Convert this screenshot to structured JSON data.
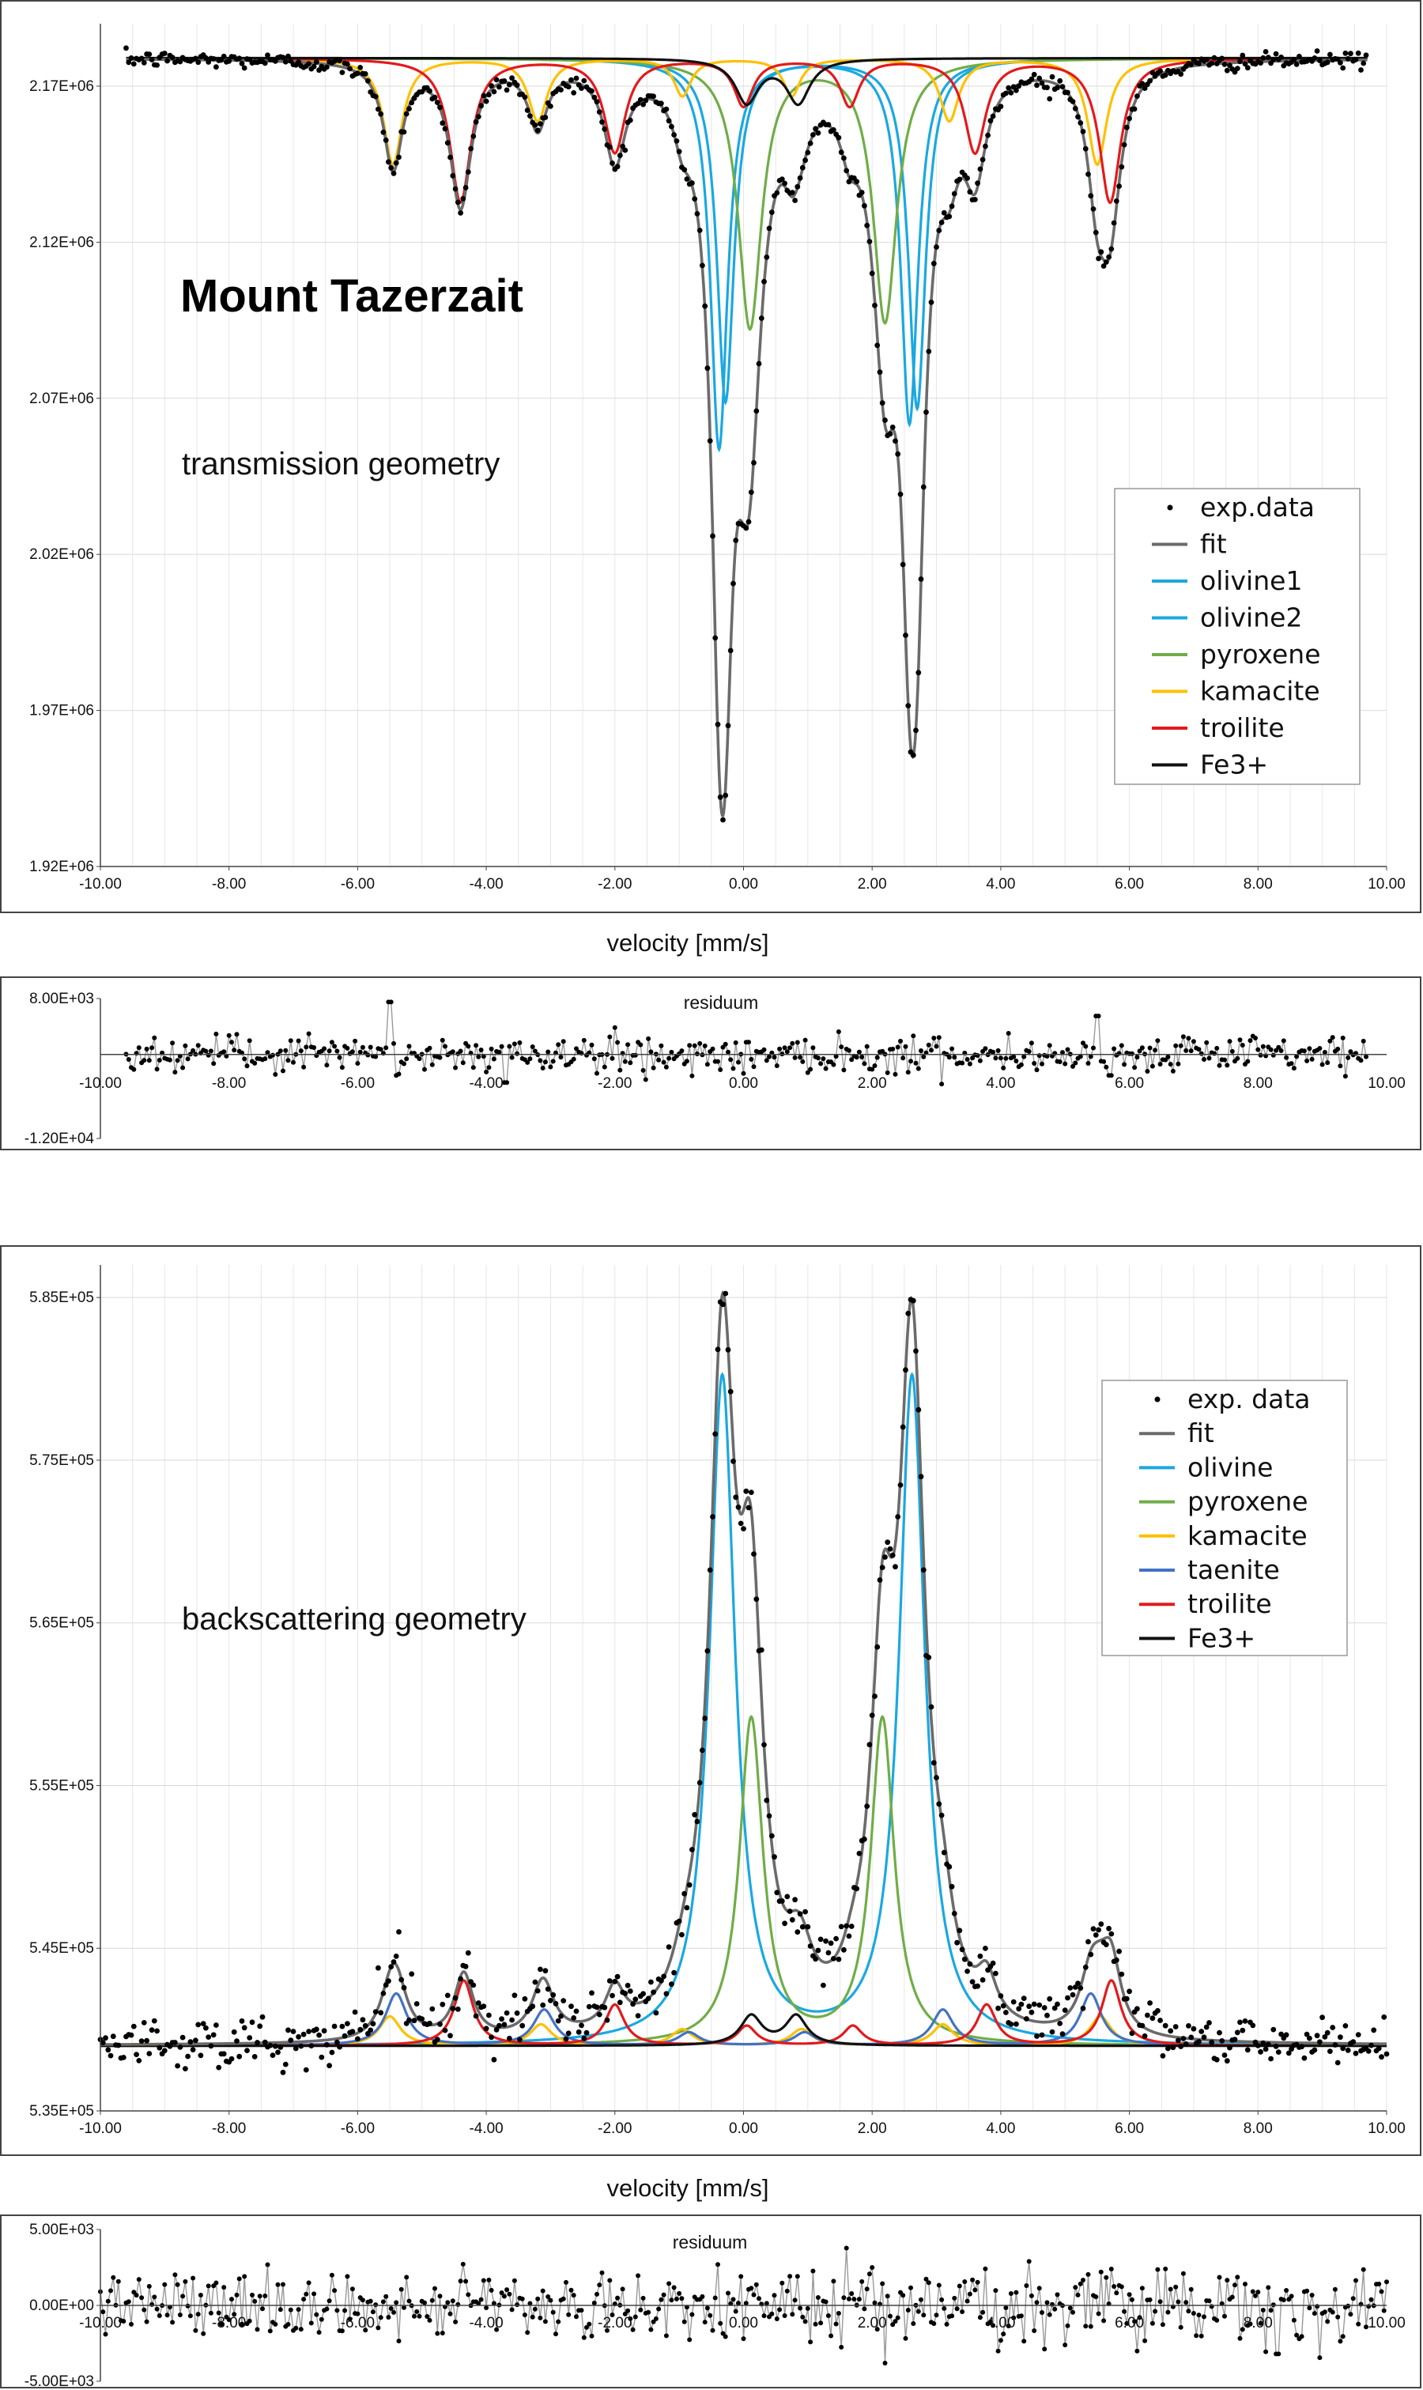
{
  "chart_data": [
    {
      "type": "line",
      "annotation_title": "Mount Tazerzait",
      "annotation_subtitle": "transmission geometry",
      "xlabel": "velocity [mm/s]",
      "ylabel": "",
      "xlim": [
        -10,
        10
      ],
      "ylim": [
        1920000,
        2190000
      ],
      "x_ticks": [
        "-10.00",
        "-8.00",
        "-6.00",
        "-4.00",
        "-2.00",
        "0.00",
        "2.00",
        "4.00",
        "6.00",
        "8.00",
        "10.00"
      ],
      "y_ticks": [
        "1.92E+06",
        "1.97E+06",
        "2.02E+06",
        "2.07E+06",
        "2.12E+06",
        "2.17E+06"
      ],
      "y_tick_values": [
        1920000,
        1970000,
        2020000,
        2070000,
        2120000,
        2170000
      ],
      "grid": true,
      "legend_position": "right",
      "baseline": 2179000,
      "data_range": [
        -9.6,
        9.7
      ],
      "series": [
        {
          "name": "exp.data",
          "color": "#111111",
          "kind": "points"
        },
        {
          "name": "fit",
          "color": "#6b6b6b",
          "kind": "sum"
        },
        {
          "name": "olivine1",
          "color": "#1ba8e0",
          "peaks": [
            [
              -0.38,
              0.16,
              125000
            ],
            [
              2.58,
              0.16,
              117000
            ]
          ]
        },
        {
          "name": "olivine2",
          "color": "#1ba8e0",
          "peaks": [
            [
              -0.28,
              0.16,
              110000
            ],
            [
              2.7,
              0.16,
              112000
            ]
          ]
        },
        {
          "name": "pyroxene",
          "color": "#70ad47",
          "peaks": [
            [
              0.1,
              0.22,
              86000
            ],
            [
              2.2,
              0.22,
              84000
            ]
          ]
        },
        {
          "name": "kamacite",
          "color": "#ffc000",
          "peaks": [
            [
              -5.45,
              0.18,
              34000
            ],
            [
              -3.2,
              0.18,
              20000
            ],
            [
              -0.95,
              0.16,
              12000
            ],
            [
              0.75,
              0.16,
              12000
            ],
            [
              3.2,
              0.18,
              20000
            ],
            [
              5.5,
              0.18,
              34000
            ]
          ]
        },
        {
          "name": "troilite",
          "color": "#e31a1c",
          "peaks": [
            [
              -4.4,
              0.2,
              46000
            ],
            [
              -2.0,
              0.2,
              30000
            ],
            [
              0.0,
              0.18,
              15000
            ],
            [
              1.65,
              0.18,
              15000
            ],
            [
              3.6,
              0.2,
              30000
            ],
            [
              5.7,
              0.2,
              46000
            ]
          ]
        },
        {
          "name": "Fe3+",
          "color": "#111111",
          "peaks": [
            [
              0.05,
              0.22,
              14000
            ],
            [
              0.85,
              0.22,
              14000
            ]
          ]
        }
      ]
    },
    {
      "type": "line",
      "annotation_title": "residuum",
      "xlim": [
        -10,
        10
      ],
      "ylim": [
        -12000,
        8000
      ],
      "x_ticks": [
        "-10.00",
        "-8.00",
        "-6.00",
        "-4.00",
        "-2.00",
        "0.00",
        "2.00",
        "4.00",
        "6.00",
        "8.00",
        "10.00"
      ],
      "y_ticks": [
        "-1.20E+04",
        "8.00E+03"
      ],
      "y_tick_values": [
        -12000,
        8000
      ],
      "amplitude": 1300,
      "spikes": [
        [
          -5.5,
          7500
        ],
        [
          -5.4,
          -3000
        ],
        [
          -4.0,
          -2500
        ],
        [
          -3.7,
          -4000
        ],
        [
          5.5,
          5500
        ],
        [
          5.7,
          -3000
        ]
      ],
      "data_range": [
        -9.6,
        9.7
      ]
    },
    {
      "type": "line",
      "annotation_subtitle": "backscattering geometry",
      "xlabel": "velocity [mm/s]",
      "ylabel": "",
      "xlim": [
        -10,
        10
      ],
      "ylim": [
        535000,
        587000
      ],
      "x_ticks": [
        "-10.00",
        "-8.00",
        "-6.00",
        "-4.00",
        "-2.00",
        "0.00",
        "2.00",
        "4.00",
        "6.00",
        "8.00",
        "10.00"
      ],
      "y_ticks": [
        "5.35E+05",
        "5.45E+05",
        "5.55E+05",
        "5.65E+05",
        "5.75E+05",
        "5.85E+05"
      ],
      "y_tick_values": [
        535000,
        545000,
        555000,
        565000,
        575000,
        585000
      ],
      "grid": true,
      "legend_position": "top-right",
      "baseline": 539000,
      "data_range": [
        -10,
        10
      ],
      "series": [
        {
          "name": "exp. data",
          "color": "#111111",
          "kind": "points"
        },
        {
          "name": "fit",
          "color": "#6b6b6b",
          "kind": "sum"
        },
        {
          "name": "olivine",
          "color": "#1ba8e0",
          "peaks": [
            [
              -0.33,
              0.24,
              41000
            ],
            [
              2.62,
              0.24,
              41000
            ]
          ]
        },
        {
          "name": "pyroxene",
          "color": "#70ad47",
          "peaks": [
            [
              0.12,
              0.22,
              20000
            ],
            [
              2.16,
              0.22,
              20000
            ]
          ]
        },
        {
          "name": "kamacite",
          "color": "#ffc000",
          "peaks": [
            [
              -5.5,
              0.2,
              1800
            ],
            [
              -3.15,
              0.2,
              1300
            ],
            [
              -0.95,
              0.2,
              1000
            ],
            [
              0.9,
              0.2,
              1000
            ],
            [
              3.1,
              0.2,
              1300
            ],
            [
              5.55,
              0.2,
              1800
            ]
          ]
        },
        {
          "name": "taenite",
          "color": "#4472c4",
          "peaks": [
            [
              -5.4,
              0.2,
              3200
            ],
            [
              -3.1,
              0.2,
              2200
            ],
            [
              -0.85,
              0.2,
              800
            ],
            [
              0.95,
              0.2,
              800
            ],
            [
              3.1,
              0.2,
              2200
            ],
            [
              5.4,
              0.2,
              3200
            ]
          ]
        },
        {
          "name": "troilite",
          "color": "#e31a1c",
          "peaks": [
            [
              -4.35,
              0.18,
              4000
            ],
            [
              -2.0,
              0.18,
              2500
            ],
            [
              0.05,
              0.18,
              1200
            ],
            [
              1.7,
              0.18,
              1200
            ],
            [
              3.78,
              0.18,
              2500
            ],
            [
              5.72,
              0.18,
              4000
            ]
          ]
        },
        {
          "name": "Fe3+",
          "color": "#111111",
          "peaks": [
            [
              0.12,
              0.2,
              1800
            ],
            [
              0.82,
              0.2,
              1800
            ]
          ]
        }
      ]
    },
    {
      "type": "line",
      "annotation_title": "residuum",
      "xlim": [
        -10,
        10
      ],
      "ylim": [
        -5000,
        5000
      ],
      "x_ticks": [
        "-10.00",
        "-8.00",
        "-6.00",
        "-4.00",
        "-2.00",
        "0.00",
        "2.00",
        "4.00",
        "6.00",
        "8.00",
        "10.00"
      ],
      "y_ticks": [
        "-5.00E+03",
        "0.00E+00",
        "5.00E+03"
      ],
      "y_tick_values": [
        -5000,
        0,
        5000
      ],
      "amplitude": 1200,
      "spikes": [
        [
          -0.4,
          2700
        ],
        [
          2.0,
          2500
        ],
        [
          2.2,
          -3800
        ],
        [
          4.0,
          -2300
        ],
        [
          8.3,
          -3200
        ]
      ],
      "data_range": [
        -10,
        10
      ]
    }
  ]
}
